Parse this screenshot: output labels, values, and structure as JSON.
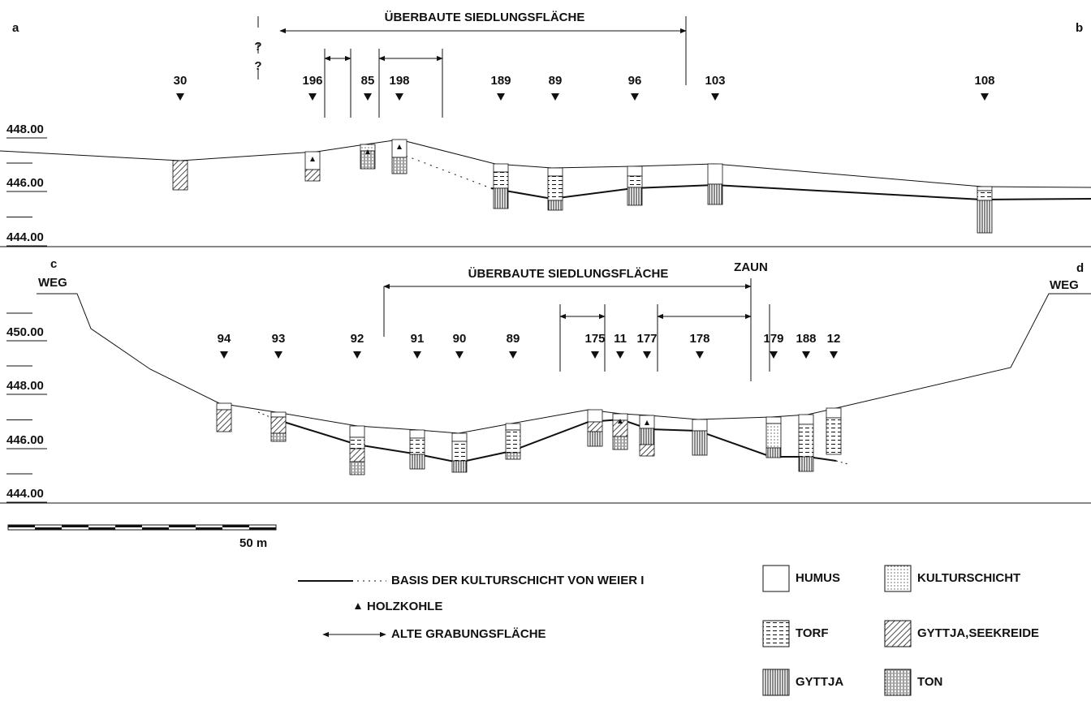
{
  "profile_top": {
    "left_label": "a",
    "right_label": "b",
    "span_label": "ÜBERBAUTE SIEDLUNGSFLÄCHE",
    "question_marks": [
      "?",
      "?"
    ],
    "boreholes": [
      "30",
      "196",
      "85",
      "198",
      "189",
      "89",
      "96",
      "103",
      "108"
    ],
    "elevations": [
      "448.00",
      "446.00",
      "444.00"
    ]
  },
  "profile_bottom": {
    "left_label": "c",
    "left_road": "WEG",
    "right_label": "d",
    "right_road": "WEG",
    "span_label": "ÜBERBAUTE SIEDLUNGSFLÄCHE",
    "fence_label": "ZAUN",
    "boreholes": [
      "94",
      "93",
      "92",
      "91",
      "90",
      "89",
      "175",
      "11",
      "177",
      "178",
      "179",
      "188",
      "12"
    ],
    "elevations": [
      "450.00",
      "448.00",
      "446.00",
      "444.00"
    ]
  },
  "scale_bar": {
    "label": "50 m"
  },
  "legend": {
    "lines": [
      "BASIS DER KULTURSCHICHT VON WEIER I",
      "HOLZKOHLE",
      "ALTE GRABUNGSFLÄCHE"
    ],
    "materials": [
      "HUMUS",
      "KULTURSCHICHT",
      "TORF",
      "GYTTJA,SEEKREIDE",
      "GYTTJA",
      "TON"
    ]
  }
}
